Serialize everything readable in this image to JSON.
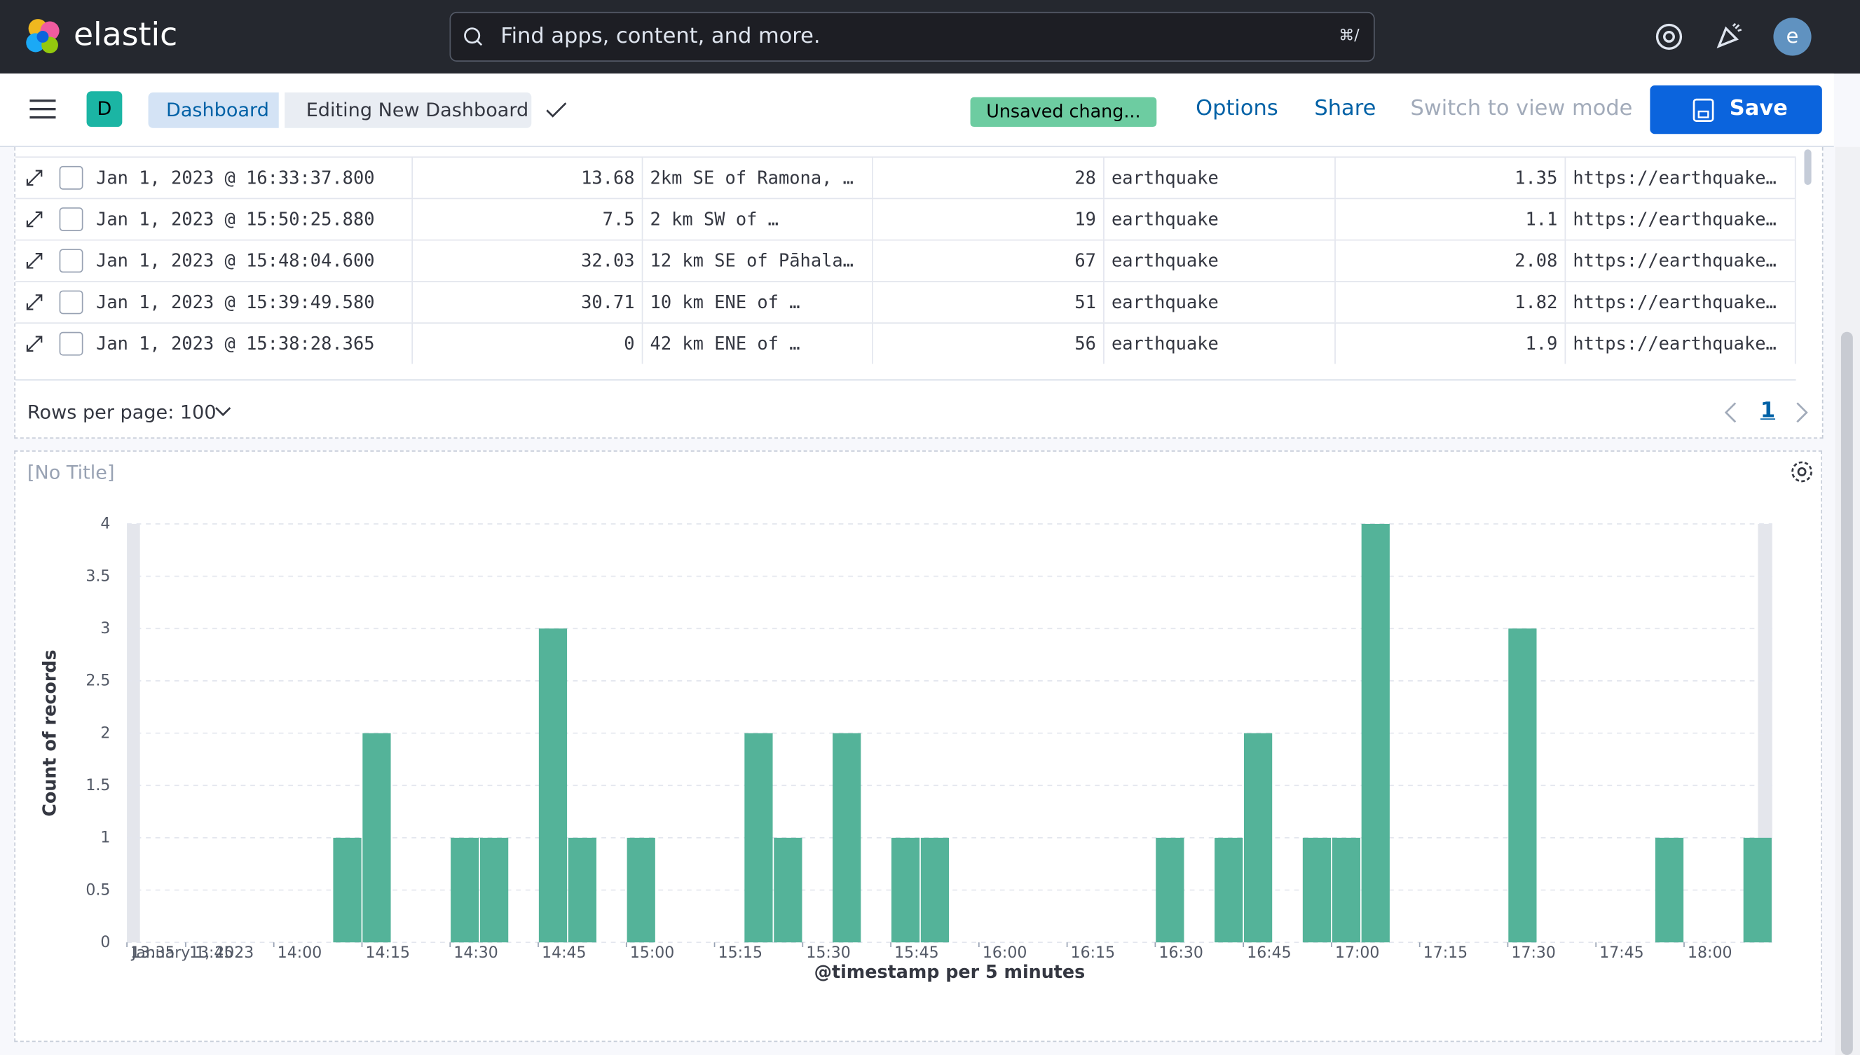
{
  "header": {
    "logo": "elastic",
    "search_placeholder": "Find apps, content, and more.",
    "shortcut": "⌘/",
    "avatar": "e"
  },
  "nav": {
    "space": "D",
    "breadcrumbs": [
      "Dashboard",
      "Editing New Dashboard"
    ],
    "status": "Unsaved chang...",
    "actions": [
      "Options",
      "Share",
      "Switch to view mode"
    ],
    "save": "Save"
  },
  "table": {
    "rows": [
      [
        "Jan 1, 2023 @ 16:33:37.800",
        13.68,
        "2km SE of Ramona, …",
        28,
        "earthquake",
        1.35,
        "https://earthquake…"
      ],
      [
        "Jan 1, 2023 @ 15:50:25.880",
        7.5,
        "2 km SW of …",
        19,
        "earthquake",
        1.1,
        "https://earthquake…"
      ],
      [
        "Jan 1, 2023 @ 15:48:04.600",
        32.03,
        "12 km SE of Pāhala…",
        67,
        "earthquake",
        2.08,
        "https://earthquake…"
      ],
      [
        "Jan 1, 2023 @ 15:39:49.580",
        30.71,
        "10 km ENE of …",
        51,
        "earthquake",
        1.82,
        "https://earthquake…"
      ],
      [
        "Jan 1, 2023 @ 15:38:28.365",
        0,
        "42 km ENE of …",
        56,
        "earthquake",
        1.9,
        "https://earthquake…"
      ]
    ],
    "rows_per_page": "Rows per page: 100",
    "page": "1"
  },
  "panel_title": "[No Title]",
  "chart_data": {
    "type": "bar",
    "color": "#54b399",
    "x": [
      "14:10",
      "14:15",
      "14:30",
      "14:35",
      "14:45",
      "14:50",
      "15:00",
      "15:20",
      "15:25",
      "15:35",
      "15:45",
      "15:50",
      "16:30",
      "16:40",
      "16:45",
      "16:55",
      "17:00",
      "17:05",
      "17:30",
      "17:55",
      "18:10"
    ],
    "values": [
      1,
      2,
      1,
      1,
      3,
      1,
      1,
      2,
      1,
      2,
      1,
      1,
      1,
      1,
      2,
      1,
      1,
      4,
      3,
      1,
      1
    ],
    "xlim": [
      "13:35",
      "18:15"
    ],
    "xticks": [
      "13:35",
      "13:45",
      "14:00",
      "14:15",
      "14:30",
      "14:45",
      "15:00",
      "15:15",
      "15:30",
      "15:45",
      "16:00",
      "16:15",
      "16:30",
      "16:45",
      "17:00",
      "17:15",
      "17:30",
      "17:45",
      "18:00"
    ],
    "x_date_label": "January 1, 2023",
    "ylim": [
      0,
      4
    ],
    "yticks": [
      0,
      0.5,
      1,
      1.5,
      2,
      2.5,
      3,
      3.5,
      4
    ],
    "grid": true,
    "xlabel": "@timestamp per 5 minutes",
    "ylabel": "Count of records"
  }
}
